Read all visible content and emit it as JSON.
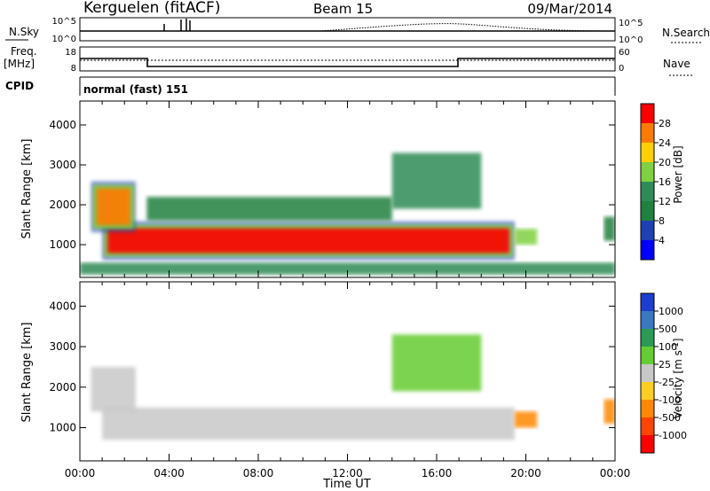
{
  "header": {
    "station": "Kerguelen (fitACF)",
    "beam": "Beam 15",
    "date": "09/Mar/2014"
  },
  "noise_panel": {
    "left_label": "N.Sky",
    "right_label": "N.Search",
    "left_ticks": [
      "10^5",
      "10^0"
    ],
    "right_ticks": [
      "10^5",
      "10^0"
    ]
  },
  "freq_panel": {
    "left_label_1": "Freq.",
    "left_label_2": "[MHz]",
    "right_label": "Nave",
    "left_ticks": [
      "18",
      "8"
    ],
    "right_ticks": [
      "60",
      "0"
    ],
    "cpid_label": "CPID",
    "cpid_text": "normal (fast) 151"
  },
  "chart_data": [
    {
      "type": "heatmap",
      "name": "power",
      "ylabel": "Slant Range [km]",
      "xlabel": "",
      "ylim": [
        180,
        4600
      ],
      "yticks": [
        "4000",
        "3000",
        "2000",
        "1000"
      ],
      "xlim": [
        "00:00",
        "24:00"
      ],
      "colorbar": {
        "label": "Power [dB]",
        "ticks": [
          "28",
          "24",
          "20",
          "16",
          "12",
          "8",
          "4"
        ],
        "colors": [
          "#ff0000",
          "#ff7a00",
          "#ffd000",
          "#80d040",
          "#2e8b57",
          "#208040",
          "#1f3fb4",
          "#0000ff"
        ]
      },
      "echo_regions": [
        {
          "t0": 1.0,
          "t1": 19.5,
          "r0": 700,
          "r1": 1500,
          "peak_db": 28
        },
        {
          "t0": 0.5,
          "t1": 2.5,
          "r0": 1400,
          "r1": 2500,
          "peak_db": 24
        },
        {
          "t0": 3.0,
          "t1": 14.0,
          "r0": 1600,
          "r1": 2200,
          "peak_db": 10
        },
        {
          "t0": 14.0,
          "t1": 18.0,
          "r0": 1900,
          "r1": 3300,
          "peak_db": 12
        },
        {
          "t0": 0.0,
          "t1": 24.0,
          "r0": 250,
          "r1": 550,
          "peak_db": 14
        },
        {
          "t0": 19.5,
          "t1": 20.5,
          "r0": 1000,
          "r1": 1400,
          "peak_db": 18
        },
        {
          "t0": 23.5,
          "t1": 24.0,
          "r0": 1100,
          "r1": 1700,
          "peak_db": 8
        }
      ]
    },
    {
      "type": "heatmap",
      "name": "velocity",
      "ylabel": "Slant Range [km]",
      "xlabel": "Time UT",
      "ylim": [
        180,
        4600
      ],
      "yticks": [
        "4000",
        "3000",
        "2000",
        "1000"
      ],
      "xlim": [
        "00:00",
        "24:00"
      ],
      "xticks": [
        "00:00",
        "04:00",
        "08:00",
        "12:00",
        "16:00",
        "20:00",
        "00:00"
      ],
      "colorbar": {
        "label": "Velocity [m s-1]",
        "ticks": [
          "1000",
          "500",
          "100",
          "25",
          "-25",
          "-100",
          "-500",
          "-1000"
        ],
        "colors": [
          "#1a3fd0",
          "#3a78c0",
          "#2a9a55",
          "#66cc33",
          "#c8c8c8",
          "#ffcc22",
          "#ff8800",
          "#ff4400",
          "#ff0000"
        ]
      },
      "echo_regions": [
        {
          "t0": 1.0,
          "t1": 19.5,
          "r0": 700,
          "r1": 1500,
          "velocity": 0
        },
        {
          "t0": 0.5,
          "t1": 2.5,
          "r0": 1400,
          "r1": 2500,
          "velocity": 0
        },
        {
          "t0": 14.0,
          "t1": 18.0,
          "r0": 1900,
          "r1": 3300,
          "velocity": 150
        },
        {
          "t0": 19.5,
          "t1": 20.5,
          "r0": 1000,
          "r1": 1400,
          "velocity": -300
        },
        {
          "t0": 23.5,
          "t1": 24.0,
          "r0": 1100,
          "r1": 1700,
          "velocity": -400
        }
      ]
    }
  ]
}
